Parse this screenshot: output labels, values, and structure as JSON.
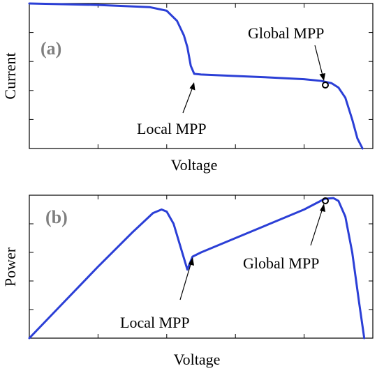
{
  "colors": {
    "curve": "#2b3fd6",
    "frame": "#000000",
    "panel_label": "#7f7f7f"
  },
  "chart_data": [
    {
      "type": "line",
      "panel_label": "(a)",
      "xlabel": "Voltage",
      "ylabel": "Current",
      "xlim": [
        0,
        1
      ],
      "ylim": [
        0,
        1
      ],
      "grid": false,
      "x_ticks": [
        0.2,
        0.4,
        0.6,
        0.8
      ],
      "y_ticks": [
        0.2,
        0.4,
        0.6,
        0.8
      ],
      "series": [
        {
          "x": [
            0,
            0.2,
            0.35,
            0.4,
            0.43,
            0.45,
            0.46,
            0.47,
            0.48,
            0.5,
            0.6,
            0.7,
            0.8,
            0.85,
            0.88,
            0.9,
            0.92,
            0.94,
            0.955,
            0.97
          ],
          "y": [
            1.0,
            0.99,
            0.975,
            0.95,
            0.88,
            0.78,
            0.7,
            0.57,
            0.515,
            0.51,
            0.5,
            0.49,
            0.478,
            0.466,
            0.45,
            0.42,
            0.35,
            0.2,
            0.07,
            0.0
          ]
        }
      ],
      "annotations": [
        {
          "text": "Local MPP",
          "x": 0.48,
          "y": 0.515,
          "marker": false
        },
        {
          "text": "Global MPP",
          "x": 0.864,
          "y": 0.465,
          "marker": true
        }
      ]
    },
    {
      "type": "line",
      "panel_label": "(b)",
      "xlabel": "Voltage",
      "ylabel": "Power",
      "xlim": [
        0,
        1
      ],
      "ylim": [
        0,
        1
      ],
      "grid": false,
      "x_ticks": [
        0.2,
        0.4,
        0.6,
        0.8
      ],
      "y_ticks": [
        0.2,
        0.4,
        0.6,
        0.8
      ],
      "series": [
        {
          "x": [
            0,
            0.1,
            0.2,
            0.3,
            0.36,
            0.385,
            0.4,
            0.42,
            0.44,
            0.46,
            0.475,
            0.5,
            0.6,
            0.7,
            0.8,
            0.86,
            0.885,
            0.9,
            0.92,
            0.94,
            0.96,
            0.975
          ],
          "y": [
            0.0,
            0.25,
            0.5,
            0.74,
            0.875,
            0.9,
            0.885,
            0.8,
            0.64,
            0.48,
            0.57,
            0.6,
            0.7,
            0.8,
            0.9,
            0.975,
            0.98,
            0.96,
            0.85,
            0.6,
            0.25,
            0.0
          ]
        }
      ],
      "annotations": [
        {
          "text": "Local MPP",
          "x": 0.475,
          "y": 0.57,
          "marker": false
        },
        {
          "text": "Global MPP",
          "x": 0.862,
          "y": 0.975,
          "marker": true
        }
      ]
    }
  ]
}
